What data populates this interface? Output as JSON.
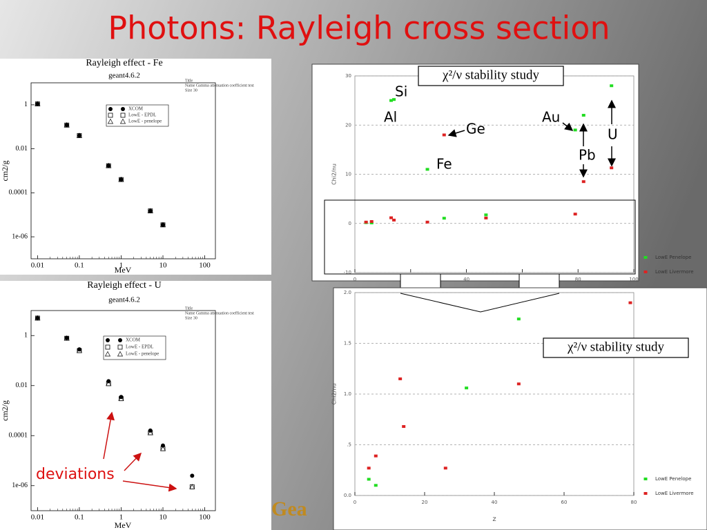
{
  "title": "Photons: Rayleigh cross section",
  "logo": "Gea",
  "chart_data": [
    {
      "type": "scatter",
      "title": "Rayleigh effect - Fe",
      "subtitle": "geant4.6.2",
      "notes": [
        "Title",
        "Name  Gamma attenuation coefficient test",
        "Size 30"
      ],
      "xlabel": "MeV",
      "ylabel": "cm2/g",
      "log_x": true,
      "log_y": true,
      "grid": false,
      "xlim": [
        0.007,
        180
      ],
      "ylim": [
        1e-07,
        10
      ],
      "xticks": [
        0.01,
        0.1,
        1,
        10,
        100
      ],
      "yticks": [
        1,
        0.01,
        0.0001,
        {
          "value": 1e-06,
          "label": "1e-06"
        }
      ],
      "x": [
        0.01,
        0.05,
        0.1,
        0.5,
        1,
        5,
        10
      ],
      "series": [
        {
          "name": "XCOM",
          "marker": "circle",
          "color": "#000000",
          "values": [
            1.1,
            0.12,
            0.04,
            0.0017,
            0.0004,
            1.5e-05,
            3.5e-06
          ]
        },
        {
          "name": "LowE - EPDL",
          "marker": "square",
          "color": "#000000",
          "values": [
            1.1,
            0.12,
            0.04,
            0.0017,
            0.0004,
            1.5e-05,
            3.5e-06
          ]
        },
        {
          "name": "LowE - penelope",
          "marker": "triangle",
          "color": "#000000",
          "values": [
            1.1,
            0.12,
            0.04,
            0.0017,
            0.0004,
            1.5e-05,
            3.5e-06
          ]
        }
      ]
    },
    {
      "type": "scatter",
      "title": "Rayleigh effect - U",
      "subtitle": "geant4.6.2",
      "notes": [
        "Title",
        "Name  Gamma attenuation coefficient test",
        "Size 30"
      ],
      "xlabel": "MeV",
      "ylabel": "cm2/g",
      "log_x": true,
      "log_y": true,
      "grid": false,
      "xlim": [
        0.007,
        180
      ],
      "ylim": [
        1e-07,
        10
      ],
      "xticks": [
        0.01,
        0.1,
        1,
        10,
        100
      ],
      "yticks": [
        1,
        0.01,
        0.0001,
        {
          "value": 1e-06,
          "label": "1e-06"
        }
      ],
      "x": [
        0.01,
        0.05,
        0.1,
        0.5,
        1,
        5,
        10,
        50
      ],
      "series": [
        {
          "name": "XCOM",
          "marker": "circle",
          "color": "#000000",
          "values": [
            5,
            0.8,
            0.28,
            0.015,
            0.0035,
            0.00016,
            4e-05,
            2.5e-06
          ]
        },
        {
          "name": "LowE - EPDL",
          "marker": "square",
          "color": "#000000",
          "values": [
            5,
            0.78,
            0.25,
            0.012,
            0.003,
            0.00013,
            3e-05,
            9e-07
          ]
        },
        {
          "name": "LowE - penelope",
          "marker": "triangle",
          "color": "#000000",
          "values": [
            5,
            0.78,
            0.25,
            0.012,
            0.003,
            0.00013,
            3e-05,
            9e-07
          ]
        }
      ],
      "annotations": [
        "deviations"
      ]
    },
    {
      "type": "scatter",
      "title": "χ²/ν stability study",
      "ylabel": "Chi2/nu",
      "grid": true,
      "xlim": [
        0,
        100
      ],
      "ylim": [
        -10,
        30
      ],
      "xticks": [
        0,
        20,
        40,
        60,
        80,
        100
      ],
      "yticks": [
        -10,
        0,
        10,
        20,
        30
      ],
      "x": [
        4,
        6,
        13,
        14,
        26,
        32,
        47,
        79,
        82,
        92
      ],
      "series": [
        {
          "name": "LowE Penelope",
          "marker": "square",
          "color": "#22dd22",
          "values": [
            0.16,
            0.1,
            25,
            25.2,
            11,
            1.06,
            1.74,
            19,
            22,
            28
          ]
        },
        {
          "name": "LowE Livermore",
          "marker": "square",
          "color": "#dd2222",
          "values": [
            0.27,
            0.39,
            1.15,
            0.68,
            0.27,
            18,
            1.1,
            1.9,
            8.5,
            11.3
          ]
        }
      ],
      "annotations": [
        "Si",
        "Al",
        "Ge",
        "Fe",
        "Au",
        "Pb",
        "U"
      ]
    },
    {
      "type": "scatter",
      "title": "χ²/ν stability study",
      "xlabel": "z",
      "ylabel": "Chi2/nu",
      "grid": true,
      "xlim": [
        0,
        80
      ],
      "ylim": [
        0,
        2
      ],
      "xticks": [
        0,
        20,
        40,
        60,
        80
      ],
      "yticks": [
        {
          "value": 0,
          "label": "0.0"
        },
        {
          "value": 0.5,
          "label": ".5"
        },
        {
          "value": 1,
          "label": "1.0"
        },
        1.5,
        {
          "value": 2,
          "label": "2.0"
        }
      ],
      "series": [
        {
          "name": "LowE Penelope",
          "marker": "square",
          "color": "#22dd22",
          "x": [
            4,
            6,
            32,
            47
          ],
          "values": [
            0.16,
            0.1,
            1.06,
            1.74
          ]
        },
        {
          "name": "LowE Livermore",
          "marker": "square",
          "color": "#dd2222",
          "x": [
            4,
            6,
            13,
            14,
            26,
            47,
            79
          ],
          "values": [
            0.27,
            0.39,
            1.15,
            0.68,
            0.27,
            1.1,
            1.9
          ]
        }
      ]
    }
  ]
}
